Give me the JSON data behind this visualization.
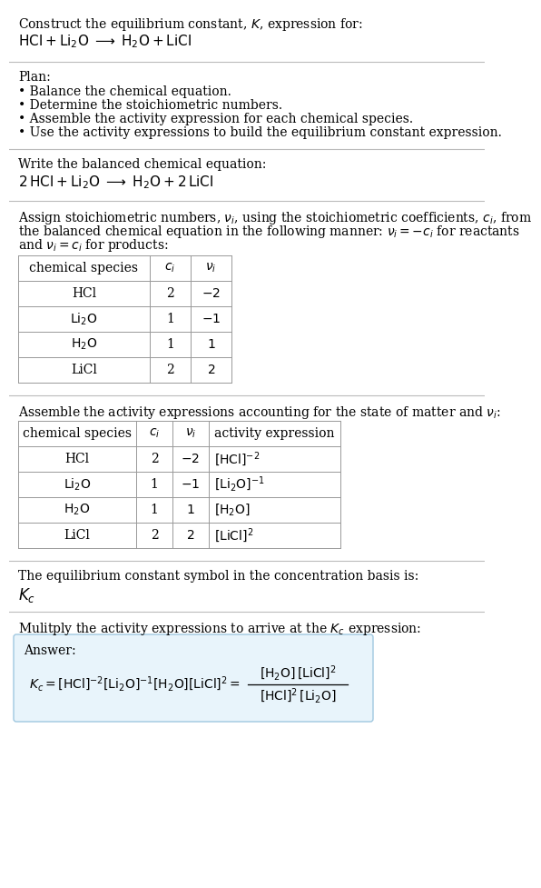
{
  "bg_color": "#ffffff",
  "text_color": "#000000",
  "separator_color": "#bbbbbb",
  "table_border_color": "#999999",
  "answer_box_facecolor": "#e8f4fb",
  "answer_box_edgecolor": "#a0c8e0",
  "font_size": 11,
  "small_font_size": 10,
  "title_line1": "Construct the equilibrium constant, $K$, expression for:",
  "title_line2": "$\\mathrm{HCl} + \\mathrm{Li_2O} \\;\\longrightarrow\\; \\mathrm{H_2O} + \\mathrm{LiCl}$",
  "plan_header": "Plan:",
  "plan_items": [
    "\\u2022 Balance the chemical equation.",
    "\\u2022 Determine the stoichiometric numbers.",
    "\\u2022 Assemble the activity expression for each chemical species.",
    "\\u2022 Use the activity expressions to build the equilibrium constant expression."
  ],
  "balanced_header": "Write the balanced chemical equation:",
  "balanced_eq": "$2\\,\\mathrm{HCl} + \\mathrm{Li_2O} \\;\\longrightarrow\\; \\mathrm{H_2O} + 2\\,\\mathrm{LiCl}$",
  "stoich_intro": "Assign stoichiometric numbers, $\\nu_i$, using the stoichiometric coefficients, $c_i$, from\nthe balanced chemical equation in the following manner: $\\nu_i = -c_i$ for reactants\nand $\\nu_i = c_i$ for products:",
  "table1_col_headers": [
    "chemical species",
    "$c_i$",
    "$\\nu_i$"
  ],
  "table1_rows": [
    [
      "HCl",
      "2",
      "$-2$"
    ],
    [
      "$\\mathrm{Li_2O}$",
      "1",
      "$-1$"
    ],
    [
      "$\\mathrm{H_2O}$",
      "1",
      "$1$"
    ],
    [
      "LiCl",
      "2",
      "$2$"
    ]
  ],
  "assemble_header": "Assemble the activity expressions accounting for the state of matter and $\\nu_i$:",
  "table2_col_headers": [
    "chemical species",
    "$c_i$",
    "$\\nu_i$",
    "activity expression"
  ],
  "table2_rows": [
    [
      "HCl",
      "2",
      "$-2$",
      "$[\\mathrm{HCl}]^{-2}$"
    ],
    [
      "$\\mathrm{Li_2O}$",
      "1",
      "$-1$",
      "$[\\mathrm{Li_2O}]^{-1}$"
    ],
    [
      "$\\mathrm{H_2O}$",
      "1",
      "$1$",
      "$[\\mathrm{H_2O}]$"
    ],
    [
      "LiCl",
      "2",
      "$2$",
      "$[\\mathrm{LiCl}]^2$"
    ]
  ],
  "kc_header": "The equilibrium constant symbol in the concentration basis is:",
  "kc_symbol": "$K_c$",
  "multiply_header": "Mulitply the activity expressions to arrive at the $K_c$ expression:",
  "answer_label": "Answer:",
  "kc_eq_left": "$K_c = [\\mathrm{HCl}]^{-2}\\,[\\mathrm{Li_2O}]^{-1}\\,[\\mathrm{H_2O}]\\,[\\mathrm{LiCl}]^2 = $",
  "frac_numerator": "$[\\mathrm{H_2O}]\\,[\\mathrm{LiCl}]^2$",
  "frac_denominator": "$[\\mathrm{HCl}]^2\\,[\\mathrm{Li_2O}]$"
}
